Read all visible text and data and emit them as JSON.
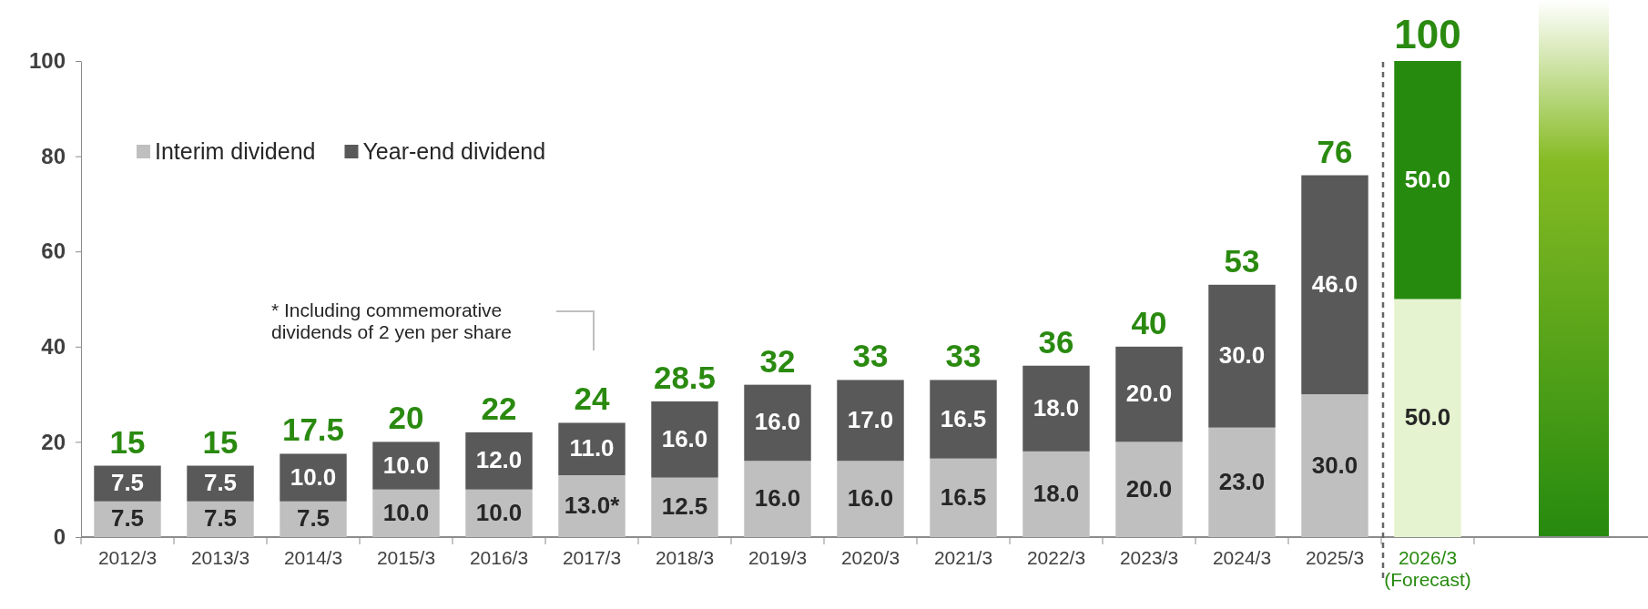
{
  "chart_data": {
    "type": "bar",
    "stacked": true,
    "categories": [
      "2012/3",
      "2013/3",
      "2014/3",
      "2015/3",
      "2016/3",
      "2017/3",
      "2018/3",
      "2019/3",
      "2020/3",
      "2021/3",
      "2022/3",
      "2023/3",
      "2024/3",
      "2025/3",
      "2026/3 (Forecast)"
    ],
    "series": [
      {
        "name": "Interim dividend",
        "color": "#bfbfbf",
        "colors": [
          "#bfbfbf",
          "#bfbfbf",
          "#bfbfbf",
          "#bfbfbf",
          "#bfbfbf",
          "#bfbfbf",
          "#bfbfbf",
          "#bfbfbf",
          "#bfbfbf",
          "#bfbfbf",
          "#bfbfbf",
          "#bfbfbf",
          "#bfbfbf",
          "#bfbfbf",
          "#e5f3d0"
        ],
        "values": [
          7.5,
          7.5,
          7.5,
          10.0,
          10.0,
          13.0,
          12.5,
          16.0,
          16.0,
          16.5,
          18.0,
          20.0,
          23.0,
          30.0,
          50.0
        ],
        "value_labels": [
          "7.5",
          "7.5",
          "7.5",
          "10.0",
          "10.0",
          "13.0*",
          "12.5",
          "16.0",
          "16.0",
          "16.5",
          "18.0",
          "20.0",
          "23.0",
          "30.0",
          "50.0"
        ]
      },
      {
        "name": "Year-end dividend",
        "color": "#595959",
        "colors": [
          "#595959",
          "#595959",
          "#595959",
          "#595959",
          "#595959",
          "#595959",
          "#595959",
          "#595959",
          "#595959",
          "#595959",
          "#595959",
          "#595959",
          "#595959",
          "#595959",
          "#268a0e"
        ],
        "values": [
          7.5,
          7.5,
          10.0,
          10.0,
          12.0,
          11.0,
          16.0,
          16.0,
          17.0,
          16.5,
          18.0,
          20.0,
          30.0,
          46.0,
          50.0
        ],
        "value_labels": [
          "7.5",
          "7.5",
          "10.0",
          "10.0",
          "12.0",
          "11.0",
          "16.0",
          "16.0",
          "17.0",
          "16.5",
          "18.0",
          "20.0",
          "30.0",
          "46.0",
          "50.0"
        ]
      }
    ],
    "totals": [
      "15",
      "15",
      "17.5",
      "20",
      "22",
      "24",
      "28.5",
      "32",
      "33",
      "33",
      "36",
      "40",
      "53",
      "76",
      "100"
    ],
    "ylim": [
      0,
      100
    ],
    "yticks": [
      0,
      20,
      40,
      60,
      80,
      100
    ],
    "legend": "top left",
    "annotations": [
      "* Including commemorative dividends of 2 yen per share"
    ]
  }
}
